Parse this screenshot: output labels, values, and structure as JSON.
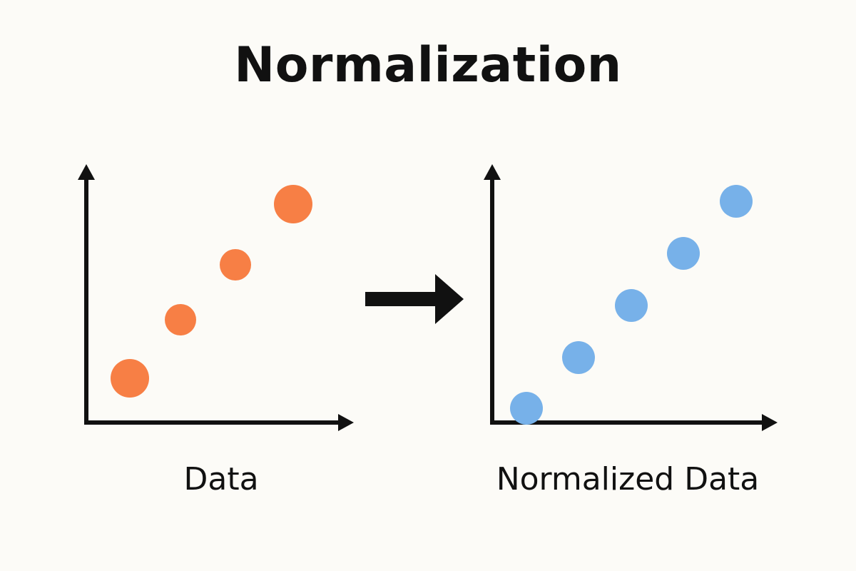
{
  "title": "Normalization",
  "left_panel": {
    "caption": "Data",
    "point_color": "#f77f45",
    "point_count": 4
  },
  "right_panel": {
    "caption": "Normalized Data",
    "point_color": "#77b1e9",
    "point_count": 5
  },
  "transition": {
    "icon": "right-arrow-icon"
  },
  "colors": {
    "background": "#fcfbf7",
    "foreground": "#111111"
  }
}
